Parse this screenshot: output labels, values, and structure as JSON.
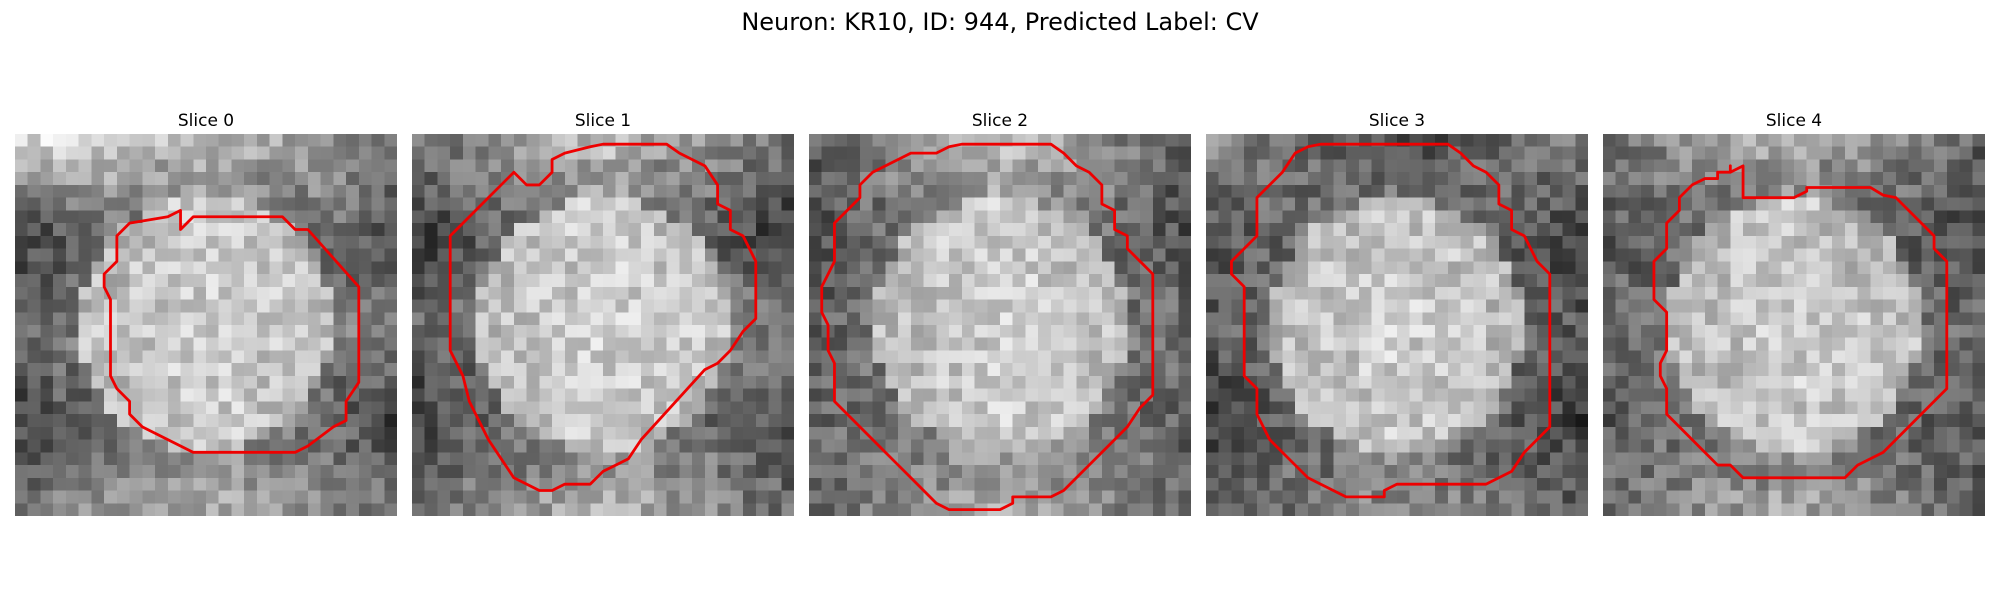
{
  "figure": {
    "title": "Neuron: KR10, ID: 944, Predicted Label: CV"
  },
  "panels": [
    {
      "title": "Slice 0",
      "darkness": [
        [
          0.0,
          0.15,
          0.45
        ],
        [
          0.78,
          0.25,
          0.65
        ],
        [
          0.5,
          0.15,
          0.45
        ],
        [
          0.75,
          0.2,
          0.75
        ],
        [
          0.5,
          0.22,
          0.5
        ]
      ],
      "contour": [
        [
          12,
          6.5
        ],
        [
          13,
          6.0
        ],
        [
          13,
          7.5
        ],
        [
          14,
          6.5
        ],
        [
          21,
          6.5
        ],
        [
          22,
          7.5
        ],
        [
          23,
          7.5
        ],
        [
          27,
          12
        ],
        [
          27,
          19.5
        ],
        [
          26,
          21
        ],
        [
          26,
          22.5
        ],
        [
          25,
          23
        ],
        [
          23,
          24.5
        ],
        [
          22,
          25
        ],
        [
          14,
          25
        ],
        [
          13,
          24.5
        ],
        [
          11,
          23.5
        ],
        [
          10,
          23
        ],
        [
          9,
          22
        ],
        [
          9,
          21
        ],
        [
          8,
          20
        ],
        [
          7.5,
          19
        ],
        [
          7.5,
          13
        ],
        [
          7,
          12
        ],
        [
          7,
          11
        ],
        [
          8,
          10
        ],
        [
          8,
          8
        ],
        [
          9,
          7
        ]
      ]
    },
    {
      "title": "Slice 1",
      "darkness": [
        [
          0.5,
          0.15,
          0.5
        ],
        [
          0.8,
          0.2,
          0.85
        ],
        [
          0.55,
          0.15,
          0.4
        ],
        [
          0.8,
          0.22,
          0.72
        ],
        [
          0.55,
          0.2,
          0.55
        ]
      ],
      "contour": [
        [
          11,
          2
        ],
        [
          12,
          1.5
        ],
        [
          14,
          1.0
        ],
        [
          15,
          0.8
        ],
        [
          20,
          0.8
        ],
        [
          21,
          1.5
        ],
        [
          23,
          2.5
        ],
        [
          24,
          4
        ],
        [
          24,
          5.5
        ],
        [
          25,
          6
        ],
        [
          25,
          7.5
        ],
        [
          26,
          8
        ],
        [
          27,
          10
        ],
        [
          27,
          14.5
        ],
        [
          26,
          15.5
        ],
        [
          25,
          17
        ],
        [
          24,
          18
        ],
        [
          23,
          18.5
        ],
        [
          18,
          24
        ],
        [
          18,
          24
        ],
        [
          17,
          25.5
        ],
        [
          16,
          26
        ],
        [
          15,
          26.5
        ],
        [
          14,
          27.5
        ],
        [
          12,
          27.5
        ],
        [
          11,
          28
        ],
        [
          10,
          28
        ],
        [
          9,
          27.5
        ],
        [
          8,
          27
        ],
        [
          7,
          25.5
        ],
        [
          6,
          24
        ],
        [
          5,
          22
        ],
        [
          4.5,
          21
        ],
        [
          4,
          19
        ],
        [
          3,
          17
        ],
        [
          3,
          15
        ],
        [
          3,
          12
        ],
        [
          3,
          8
        ],
        [
          4,
          7
        ],
        [
          5,
          6
        ],
        [
          6,
          5
        ],
        [
          7,
          4
        ],
        [
          8,
          3
        ],
        [
          9,
          4
        ],
        [
          10,
          4
        ],
        [
          11,
          3
        ]
      ]
    },
    {
      "title": "Slice 2",
      "darkness": [
        [
          0.6,
          0.15,
          0.6
        ],
        [
          0.7,
          0.15,
          0.7
        ],
        [
          0.6,
          0.18,
          0.55
        ],
        [
          0.6,
          0.2,
          0.6
        ],
        [
          0.55,
          0.2,
          0.58
        ]
      ],
      "contour": [
        [
          10,
          1.5
        ],
        [
          11,
          1.0
        ],
        [
          12,
          0.8
        ],
        [
          19,
          0.8
        ],
        [
          20,
          1.5
        ],
        [
          21,
          2.5
        ],
        [
          22,
          3
        ],
        [
          23,
          4
        ],
        [
          23,
          5.5
        ],
        [
          24,
          6
        ],
        [
          24,
          7.5
        ],
        [
          25,
          8
        ],
        [
          25,
          9
        ],
        [
          26,
          10
        ],
        [
          27,
          11
        ],
        [
          27,
          20.5
        ],
        [
          26,
          21.5
        ],
        [
          25,
          23
        ],
        [
          24,
          24
        ],
        [
          23,
          25
        ],
        [
          22,
          26
        ],
        [
          21,
          27
        ],
        [
          20,
          28
        ],
        [
          19,
          28.5
        ],
        [
          16,
          28.5
        ],
        [
          16,
          29
        ],
        [
          15,
          29.5
        ],
        [
          11,
          29.5
        ],
        [
          11,
          29.5
        ],
        [
          10,
          29
        ],
        [
          9,
          28
        ],
        [
          8,
          27
        ],
        [
          7,
          26
        ],
        [
          6,
          25
        ],
        [
          5,
          24
        ],
        [
          4,
          23
        ],
        [
          3,
          22
        ],
        [
          2,
          21
        ],
        [
          2,
          18
        ],
        [
          1.5,
          17
        ],
        [
          1.5,
          15
        ],
        [
          1,
          14
        ],
        [
          1,
          12
        ],
        [
          1.5,
          11
        ],
        [
          2,
          10
        ],
        [
          2,
          7
        ],
        [
          3,
          6
        ],
        [
          4,
          5
        ],
        [
          4,
          4
        ],
        [
          5,
          3
        ],
        [
          6,
          2.5
        ],
        [
          7,
          2
        ],
        [
          8,
          1.5
        ]
      ]
    },
    {
      "title": "Slice 3",
      "darkness": [
        [
          0.4,
          0.75,
          0.4
        ],
        [
          0.7,
          0.25,
          0.8
        ],
        [
          0.6,
          0.18,
          0.65
        ],
        [
          0.8,
          0.25,
          0.8
        ],
        [
          0.6,
          0.4,
          0.6
        ]
      ],
      "contour": [
        [
          7,
          1.5
        ],
        [
          8,
          1.0
        ],
        [
          9,
          0.8
        ],
        [
          19,
          0.8
        ],
        [
          20,
          1.5
        ],
        [
          21,
          2.5
        ],
        [
          22,
          3
        ],
        [
          23,
          4
        ],
        [
          23,
          5.5
        ],
        [
          24,
          6
        ],
        [
          24,
          7.5
        ],
        [
          25,
          8
        ],
        [
          26,
          10
        ],
        [
          27,
          11
        ],
        [
          27,
          12
        ],
        [
          27,
          23
        ],
        [
          26,
          24
        ],
        [
          25,
          25
        ],
        [
          24,
          26.5
        ],
        [
          23,
          27
        ],
        [
          22,
          27.5
        ],
        [
          15,
          27.5
        ],
        [
          14,
          28
        ],
        [
          14,
          28.5
        ],
        [
          11,
          28.5
        ],
        [
          10,
          28
        ],
        [
          9,
          27.5
        ],
        [
          8,
          27
        ],
        [
          7,
          26
        ],
        [
          6,
          25
        ],
        [
          5,
          24
        ],
        [
          4.5,
          23
        ],
        [
          4,
          22
        ],
        [
          4,
          20
        ],
        [
          3,
          19
        ],
        [
          3,
          18
        ],
        [
          3,
          12
        ],
        [
          2,
          11
        ],
        [
          2,
          10
        ],
        [
          3,
          9
        ],
        [
          4,
          8
        ],
        [
          4,
          6
        ],
        [
          4,
          5
        ],
        [
          5,
          4
        ],
        [
          6,
          3
        ]
      ]
    },
    {
      "title": "Slice 4",
      "darkness": [
        [
          0.5,
          0.2,
          0.6
        ],
        [
          0.65,
          0.35,
          0.75
        ],
        [
          0.55,
          0.18,
          0.55
        ],
        [
          0.65,
          0.28,
          0.7
        ],
        [
          0.5,
          0.25,
          0.6
        ]
      ],
      "contour": [
        [
          10,
          2.5
        ],
        [
          10,
          3
        ],
        [
          11,
          2.5
        ],
        [
          11,
          3
        ],
        [
          11,
          3.5
        ],
        [
          11,
          4
        ],
        [
          11,
          5
        ],
        [
          15,
          5
        ],
        [
          16,
          4.5
        ],
        [
          16,
          4.2
        ],
        [
          21,
          4.2
        ],
        [
          22,
          4.8
        ],
        [
          23,
          5
        ],
        [
          24,
          6
        ],
        [
          25,
          7
        ],
        [
          26,
          8
        ],
        [
          26,
          9
        ],
        [
          27,
          10
        ],
        [
          27,
          20
        ],
        [
          26,
          21
        ],
        [
          25,
          22
        ],
        [
          24,
          23
        ],
        [
          23,
          24
        ],
        [
          22,
          25
        ],
        [
          21,
          25.5
        ],
        [
          20,
          26
        ],
        [
          19,
          27
        ],
        [
          18,
          27
        ],
        [
          18,
          27
        ],
        [
          12,
          27
        ],
        [
          11,
          27
        ],
        [
          10,
          26
        ],
        [
          9,
          26
        ],
        [
          8,
          25
        ],
        [
          7,
          24
        ],
        [
          6,
          23
        ],
        [
          5,
          22
        ],
        [
          5,
          20
        ],
        [
          4.5,
          19
        ],
        [
          4.5,
          18
        ],
        [
          5,
          17
        ],
        [
          5,
          15
        ],
        [
          5,
          14
        ],
        [
          4,
          13
        ],
        [
          4,
          10
        ],
        [
          5,
          9
        ],
        [
          5,
          7
        ],
        [
          6,
          6
        ],
        [
          6,
          5
        ],
        [
          7,
          4
        ],
        [
          8,
          3.5
        ],
        [
          9,
          3.5
        ],
        [
          9,
          3
        ],
        [
          10,
          3
        ]
      ]
    }
  ]
}
